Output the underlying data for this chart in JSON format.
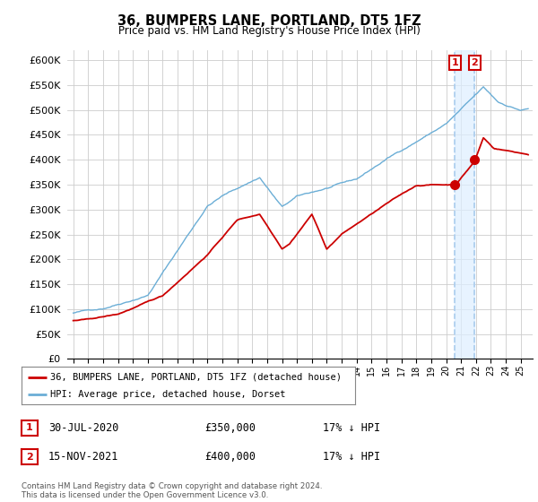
{
  "title": "36, BUMPERS LANE, PORTLAND, DT5 1FZ",
  "subtitle": "Price paid vs. HM Land Registry's House Price Index (HPI)",
  "legend_line1": "36, BUMPERS LANE, PORTLAND, DT5 1FZ (detached house)",
  "legend_line2": "HPI: Average price, detached house, Dorset",
  "annotation1_label": "1",
  "annotation1_date": "30-JUL-2020",
  "annotation1_price": "£350,000",
  "annotation1_hpi": "17% ↓ HPI",
  "annotation2_label": "2",
  "annotation2_date": "15-NOV-2021",
  "annotation2_price": "£400,000",
  "annotation2_hpi": "17% ↓ HPI",
  "footer": "Contains HM Land Registry data © Crown copyright and database right 2024.\nThis data is licensed under the Open Government Licence v3.0.",
  "ylim": [
    0,
    620000
  ],
  "yticks": [
    0,
    50000,
    100000,
    150000,
    200000,
    250000,
    300000,
    350000,
    400000,
    450000,
    500000,
    550000,
    600000
  ],
  "hpi_color": "#6baed6",
  "price_color": "#cc0000",
  "background_color": "#ffffff",
  "grid_color": "#cccccc",
  "vline_color": "#aaccee",
  "shade_color": "#ddeeff",
  "annotation_box_color": "#cc0000",
  "sale1_x": 2020.583,
  "sale1_y": 350000,
  "sale2_x": 2021.917,
  "sale2_y": 400000,
  "xmin": 1995,
  "xmax": 2025.5
}
